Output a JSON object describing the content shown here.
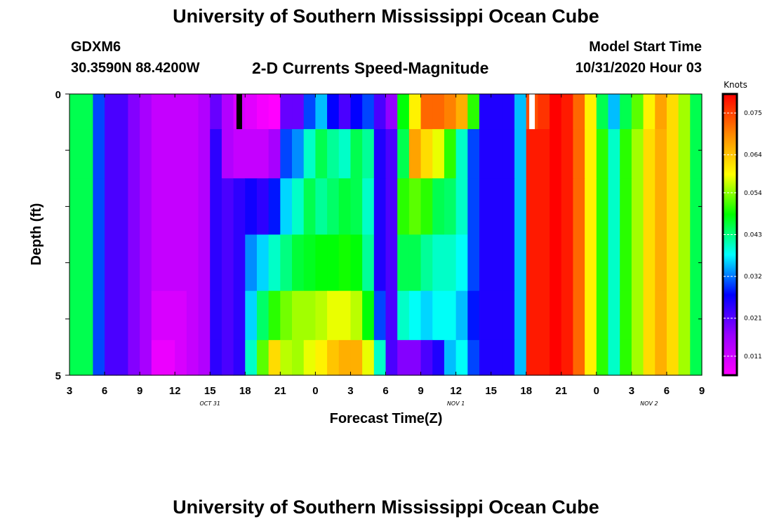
{
  "header": {
    "title": "University of Southern Mississippi Ocean Cube",
    "station": "GDXM6",
    "coords": "30.3590N 88.4200W",
    "subtitle": "2-D Currents Speed-Magnitude",
    "model_start_label": "Model Start Time",
    "model_start_value": "10/31/2020 Hour 03"
  },
  "footer": {
    "title": "University of Southern Mississippi Ocean Cube"
  },
  "chart_data": {
    "type": "heatmap",
    "title": "2-D Currents Speed-Magnitude",
    "xlabel": "Forecast Time(Z)",
    "ylabel": "Depth (ft)",
    "x_tick_labels": [
      "3",
      "6",
      "9",
      "12",
      "15",
      "18",
      "21",
      "0",
      "3",
      "6",
      "9",
      "12",
      "15",
      "18",
      "21",
      "0",
      "3",
      "6",
      "9"
    ],
    "x_hours_from_start": [
      0,
      54
    ],
    "day_labels": [
      {
        "label": "OCT 31",
        "hour": 12
      },
      {
        "label": "NOV 1",
        "hour": 33
      },
      {
        "label": "NOV 2",
        "hour": 49.5
      }
    ],
    "y_tick_labels": [
      "0",
      "5"
    ],
    "ylim": [
      0,
      5
    ],
    "colorbar": {
      "title": "Knots",
      "ticks": [
        "0.075",
        "0.064",
        "0.054",
        "0.043",
        "0.032",
        "0.021",
        "0.011"
      ],
      "range": [
        0.006,
        0.08
      ],
      "colors": [
        "#ff00ff",
        "#9900ff",
        "#0000ff",
        "#00ffff",
        "#00ff00",
        "#ffff00",
        "#ff8800",
        "#ff0000"
      ]
    },
    "depth_rows": [
      0.25,
      1.0,
      2.0,
      3.0,
      4.0,
      4.75
    ],
    "hourly_speed_knots": [
      [
        0.045,
        0.045,
        0.03,
        0.022,
        0.022,
        0.018,
        0.015,
        0.012,
        0.012,
        0.012,
        0.012,
        0.014,
        0.02,
        0.014,
        0.01,
        0.009,
        0.007,
        0.006,
        0.02,
        0.02,
        0.03,
        0.035,
        0.027,
        0.022,
        0.027,
        0.03,
        0.022,
        0.017,
        0.048,
        0.06,
        0.072,
        0.072,
        0.07,
        0.066,
        0.05,
        0.025,
        0.025,
        0.025,
        0.035,
        0.074,
        0.076,
        0.08,
        0.078,
        0.072,
        0.06,
        0.045,
        0.035,
        0.045,
        0.052,
        0.06,
        0.067,
        0.062,
        0.055,
        0.045
      ],
      [
        0.045,
        0.045,
        0.03,
        0.022,
        0.022,
        0.018,
        0.015,
        0.012,
        0.012,
        0.012,
        0.012,
        0.014,
        0.024,
        0.014,
        0.012,
        0.012,
        0.012,
        0.015,
        0.03,
        0.033,
        0.04,
        0.045,
        0.042,
        0.04,
        0.045,
        0.042,
        0.025,
        0.022,
        0.045,
        0.067,
        0.062,
        0.058,
        0.05,
        0.04,
        0.03,
        0.025,
        0.025,
        0.025,
        0.035,
        0.078,
        0.078,
        0.08,
        0.078,
        0.072,
        0.06,
        0.05,
        0.04,
        0.05,
        0.055,
        0.062,
        0.066,
        0.062,
        0.055,
        0.045
      ],
      [
        0.045,
        0.045,
        0.03,
        0.022,
        0.022,
        0.018,
        0.015,
        0.012,
        0.012,
        0.012,
        0.012,
        0.014,
        0.024,
        0.022,
        0.024,
        0.026,
        0.024,
        0.028,
        0.036,
        0.04,
        0.045,
        0.042,
        0.044,
        0.046,
        0.045,
        0.04,
        0.025,
        0.022,
        0.05,
        0.052,
        0.05,
        0.045,
        0.044,
        0.04,
        0.03,
        0.025,
        0.025,
        0.025,
        0.035,
        0.078,
        0.078,
        0.08,
        0.078,
        0.072,
        0.06,
        0.05,
        0.04,
        0.05,
        0.055,
        0.062,
        0.066,
        0.062,
        0.055,
        0.045
      ],
      [
        0.045,
        0.045,
        0.03,
        0.022,
        0.022,
        0.018,
        0.015,
        0.012,
        0.012,
        0.012,
        0.012,
        0.014,
        0.024,
        0.022,
        0.024,
        0.033,
        0.036,
        0.04,
        0.043,
        0.046,
        0.047,
        0.048,
        0.048,
        0.049,
        0.048,
        0.042,
        0.025,
        0.022,
        0.045,
        0.045,
        0.042,
        0.04,
        0.04,
        0.038,
        0.03,
        0.025,
        0.025,
        0.025,
        0.035,
        0.078,
        0.078,
        0.08,
        0.078,
        0.072,
        0.06,
        0.05,
        0.04,
        0.05,
        0.055,
        0.062,
        0.066,
        0.062,
        0.055,
        0.045
      ],
      [
        0.045,
        0.045,
        0.03,
        0.022,
        0.022,
        0.018,
        0.015,
        0.01,
        0.01,
        0.01,
        0.012,
        0.014,
        0.024,
        0.022,
        0.024,
        0.036,
        0.044,
        0.05,
        0.053,
        0.055,
        0.055,
        0.056,
        0.058,
        0.058,
        0.056,
        0.048,
        0.03,
        0.022,
        0.04,
        0.038,
        0.036,
        0.038,
        0.038,
        0.035,
        0.028,
        0.025,
        0.025,
        0.025,
        0.035,
        0.078,
        0.078,
        0.08,
        0.078,
        0.072,
        0.06,
        0.05,
        0.04,
        0.05,
        0.055,
        0.062,
        0.066,
        0.062,
        0.055,
        0.045
      ],
      [
        0.045,
        0.045,
        0.03,
        0.022,
        0.022,
        0.018,
        0.015,
        0.008,
        0.008,
        0.01,
        0.012,
        0.014,
        0.024,
        0.022,
        0.024,
        0.04,
        0.052,
        0.062,
        0.056,
        0.055,
        0.058,
        0.06,
        0.064,
        0.066,
        0.066,
        0.058,
        0.04,
        0.022,
        0.018,
        0.018,
        0.022,
        0.025,
        0.035,
        0.038,
        0.03,
        0.025,
        0.025,
        0.025,
        0.035,
        0.078,
        0.078,
        0.08,
        0.078,
        0.072,
        0.06,
        0.05,
        0.04,
        0.05,
        0.055,
        0.062,
        0.066,
        0.062,
        0.055,
        0.045
      ]
    ],
    "missing_markers": [
      {
        "hour": 14.5,
        "depth": 0.25,
        "color": "#000000"
      },
      {
        "hour": 39.5,
        "depth": 0.25,
        "color": "#ffffff"
      }
    ]
  }
}
